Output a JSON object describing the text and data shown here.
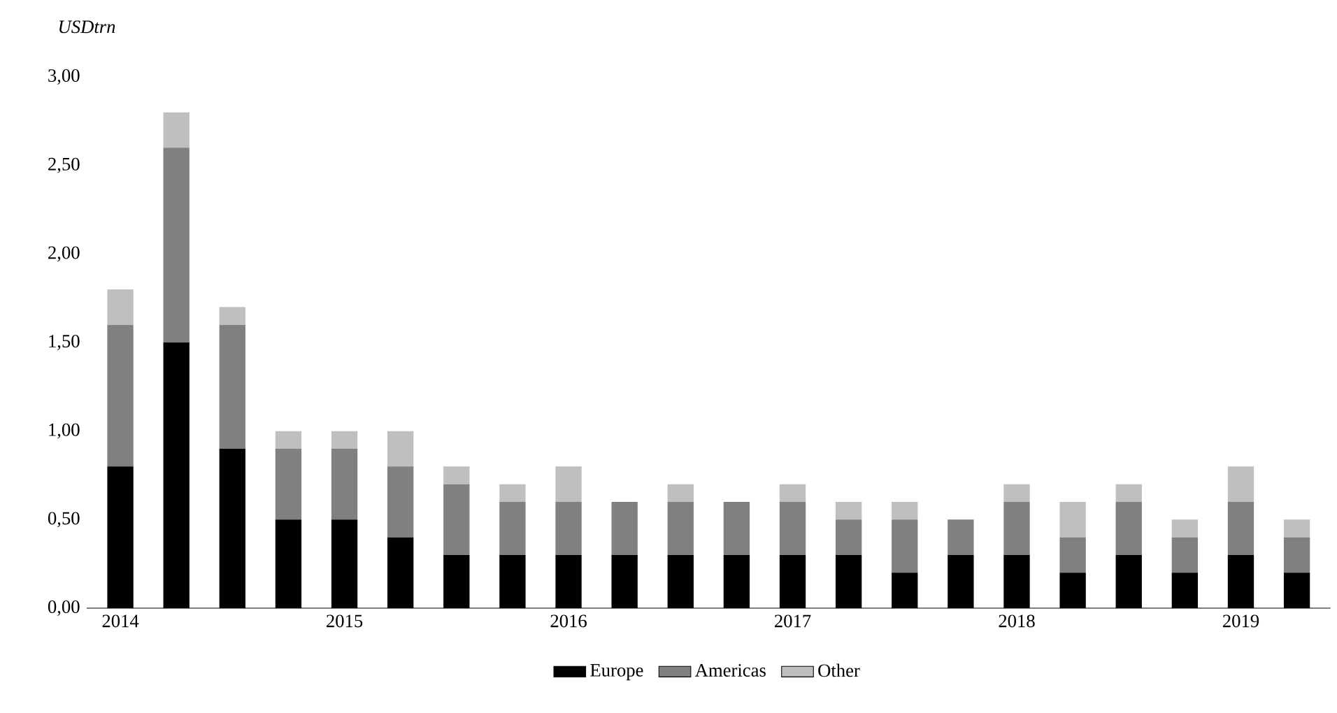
{
  "chart_data": {
    "type": "bar",
    "stacked": true,
    "ylabel": "USDtrn",
    "legend": "bottom",
    "grid": false,
    "categories": [
      "2014",
      null,
      null,
      null,
      "2015",
      null,
      null,
      null,
      "2016",
      null,
      null,
      null,
      "2017",
      null,
      null,
      null,
      "2018",
      null,
      null,
      null,
      "2019",
      null
    ],
    "ylim": [
      0,
      3
    ],
    "yticks": [
      {
        "value": 0,
        "label": "0,00"
      },
      {
        "value": 0.5,
        "label": "0,50"
      },
      {
        "value": 1,
        "label": "1,00"
      },
      {
        "value": 1.5,
        "label": "1,50"
      },
      {
        "value": 2,
        "label": "2,00"
      },
      {
        "value": 2.5,
        "label": "2,50"
      },
      {
        "value": 3,
        "label": "3,00"
      }
    ],
    "series": [
      {
        "name": "Europe",
        "color": "#000000",
        "values": [
          0.8,
          1.5,
          0.9,
          0.5,
          0.5,
          0.4,
          0.3,
          0.3,
          0.3,
          0.3,
          0.3,
          0.3,
          0.3,
          0.3,
          0.2,
          0.3,
          0.3,
          0.2,
          0.3,
          0.2,
          0.3,
          0.2
        ]
      },
      {
        "name": "Americas",
        "color": "#808080",
        "values": [
          0.8,
          1.1,
          0.7,
          0.4,
          0.4,
          0.4,
          0.4,
          0.3,
          0.3,
          0.3,
          0.3,
          0.3,
          0.3,
          0.2,
          0.3,
          0.2,
          0.3,
          0.2,
          0.3,
          0.2,
          0.3,
          0.2
        ]
      },
      {
        "name": "Other",
        "color": "#bfbfbf",
        "values": [
          0.2,
          0.2,
          0.1,
          0.1,
          0.1,
          0.2,
          0.1,
          0.1,
          0.2,
          0,
          0.1,
          0,
          0.1,
          0.1,
          0.1,
          0,
          0.1,
          0.2,
          0.1,
          0.1,
          0.2,
          0.1
        ]
      }
    ]
  }
}
